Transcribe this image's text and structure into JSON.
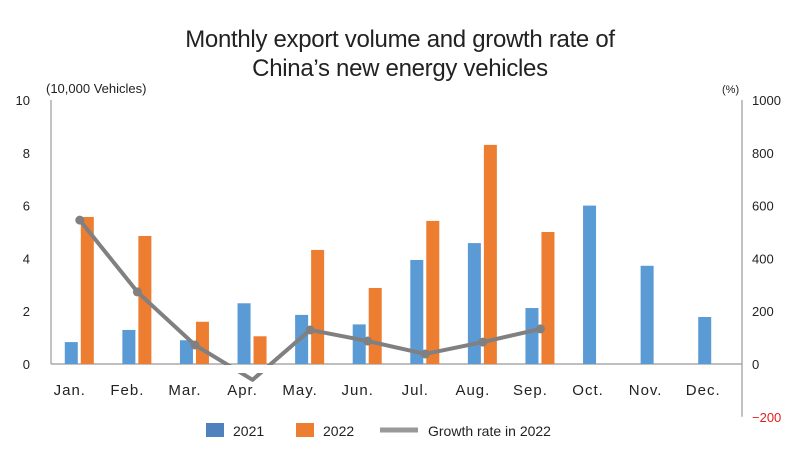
{
  "chart_data": {
    "type": "bar+line",
    "title_line1": "Monthly export volume and growth rate of",
    "title_line2": "China’s new energy vehicles",
    "ylabel_left": "(10,000 Vehicles)",
    "ylabel_right": "(%)",
    "ylim_left": [
      0,
      10
    ],
    "yticks_left": [
      "0",
      "2",
      "4",
      "6",
      "8",
      "10"
    ],
    "ylim_right": [
      -200,
      1000
    ],
    "yticks_right": [
      "−200",
      "0",
      "200",
      "400",
      "600",
      "800",
      "1000"
    ],
    "categories": [
      "Jan.",
      "Feb.",
      "Mar.",
      "Apr.",
      "May.",
      "Jun.",
      "Jul.",
      "Aug.",
      "Sep.",
      "Oct.",
      "Nov.",
      "Dec."
    ],
    "series": [
      {
        "name": "2021",
        "type": "bar",
        "axis": "left",
        "color": "#5b9bd5",
        "values": [
          0.83,
          1.29,
          0.9,
          2.3,
          1.86,
          1.5,
          3.94,
          4.58,
          2.12,
          6.0,
          3.72,
          1.78
        ]
      },
      {
        "name": "2022",
        "type": "bar",
        "axis": "left",
        "color": "#ed7d31",
        "values": [
          5.57,
          4.85,
          1.6,
          1.05,
          4.32,
          2.88,
          5.42,
          8.3,
          5.0,
          null,
          null,
          null
        ]
      },
      {
        "name": "Growth rate in 2022",
        "type": "line",
        "axis": "right",
        "color": "#808080",
        "values": [
          545,
          273,
          72,
          -60,
          129,
          87,
          38,
          83,
          133,
          null,
          null,
          null
        ]
      }
    ],
    "negative_tick_color": "#e02020",
    "legend": "bottom",
    "grid": false
  }
}
